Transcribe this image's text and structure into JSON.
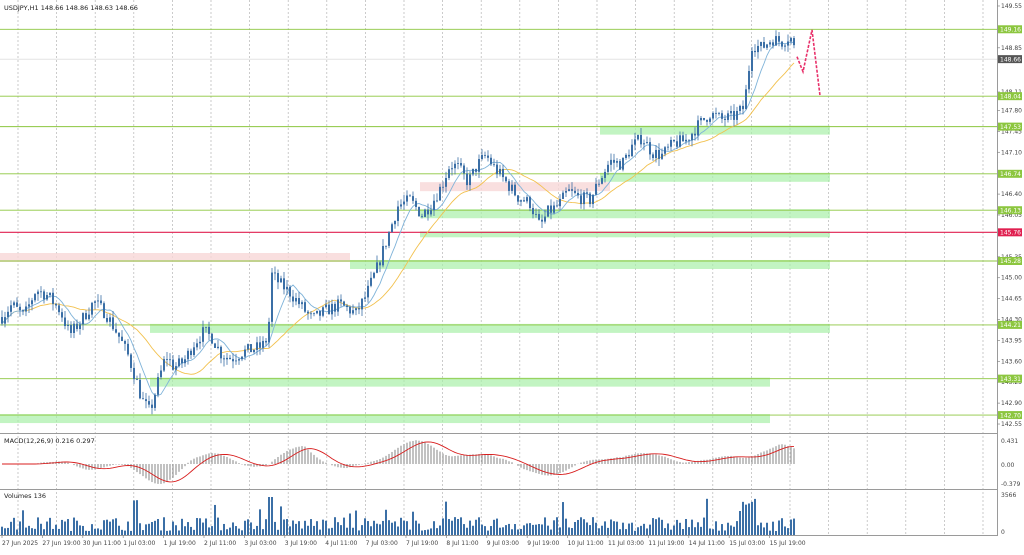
{
  "header": {
    "title": "USDJPY,H1 148.66 148.86 148.63 148.66"
  },
  "colors": {
    "candle": "#3b6fa6",
    "fast_ma": "#7fb3d9",
    "slow_ma": "#f2c14e",
    "level_line": "#8cc63f",
    "zone_green": "#a8f0a8",
    "zone_red": "#f8d7d7",
    "resistance_red": "#e02050",
    "forecast": "#e8306a",
    "macd_hist": "#9a9a9a",
    "macd_signal": "#d81e1e",
    "volume": "#3b6fa6",
    "current_price_bg": "#555555"
  },
  "price_axis": {
    "min": 142.45,
    "max": 149.6,
    "ticks": [
      "149.55",
      "148.85",
      "148.11",
      "147.80",
      "147.45",
      "147.10",
      "146.40",
      "146.05",
      "145.35",
      "145.00",
      "144.65",
      "144.30",
      "143.95",
      "143.60",
      "143.25",
      "142.90",
      "142.55"
    ]
  },
  "current_price": {
    "value": 148.66,
    "label": "148.66"
  },
  "levels": [
    {
      "value": 149.16,
      "label": "149.16",
      "kind": "green"
    },
    {
      "value": 148.04,
      "label": "148.04",
      "kind": "green"
    },
    {
      "value": 147.53,
      "label": "147.53",
      "kind": "green"
    },
    {
      "value": 146.74,
      "label": "146.74",
      "kind": "green"
    },
    {
      "value": 146.13,
      "label": "146.13",
      "kind": "green"
    },
    {
      "value": 145.76,
      "label": "145.76",
      "kind": "red"
    },
    {
      "value": 145.28,
      "label": "145.28",
      "kind": "green"
    },
    {
      "value": 144.21,
      "label": "144.21",
      "kind": "green"
    },
    {
      "value": 143.31,
      "label": "143.31",
      "kind": "green"
    },
    {
      "value": 142.7,
      "label": "142.70",
      "kind": "green"
    }
  ],
  "macd": {
    "title": "MACD(12,26,9) 0.216 0.297",
    "ticks": [
      "0.431",
      "0.00",
      "-0.379"
    ]
  },
  "volumes": {
    "title": "Volumes 136",
    "ticks": [
      "3566",
      "0"
    ]
  },
  "time_axis": {
    "labels": [
      "27 Jun 2025",
      "27 Jun 19:00",
      "30 Jun 11:00",
      "1 Jul 03:00",
      "1 Jul 19:00",
      "2 Jul 11:00",
      "3 Jul 03:00",
      "3 Jul 19:00",
      "4 Jul 11:00",
      "7 Jul 03:00",
      "7 Jul 19:00",
      "8 Jul 11:00",
      "9 Jul 03:00",
      "9 Jul 19:00",
      "10 Jul 11:00",
      "11 Jul 03:00",
      "11 Jul 19:00",
      "14 Jul 11:00",
      "15 Jul 03:00",
      "15 Jul 19:00"
    ]
  },
  "chart_data": {
    "type": "candlestick",
    "symbol": "USDJPY",
    "timeframe": "H1",
    "ohlc_last": {
      "open": 148.66,
      "high": 148.86,
      "low": 148.63,
      "close": 148.66
    },
    "price_path": [
      [
        0,
        144.3
      ],
      [
        12,
        144.55
      ],
      [
        24,
        144.35
      ],
      [
        36,
        144.8
      ],
      [
        48,
        144.7
      ],
      [
        60,
        144.45
      ],
      [
        70,
        144.05
      ],
      [
        82,
        144.3
      ],
      [
        94,
        144.6
      ],
      [
        106,
        144.4
      ],
      [
        118,
        144.05
      ],
      [
        128,
        143.7
      ],
      [
        136,
        143.3
      ],
      [
        142,
        142.95
      ],
      [
        150,
        142.75
      ],
      [
        158,
        143.25
      ],
      [
        166,
        143.7
      ],
      [
        174,
        143.5
      ],
      [
        184,
        143.6
      ],
      [
        194,
        143.9
      ],
      [
        204,
        144.1
      ],
      [
        212,
        144.0
      ],
      [
        222,
        143.7
      ],
      [
        232,
        143.65
      ],
      [
        242,
        143.75
      ],
      [
        252,
        143.8
      ],
      [
        262,
        143.85
      ],
      [
        268,
        144.0
      ],
      [
        272,
        145.05
      ],
      [
        280,
        144.9
      ],
      [
        290,
        144.75
      ],
      [
        300,
        144.55
      ],
      [
        312,
        144.3
      ],
      [
        326,
        144.45
      ],
      [
        340,
        144.55
      ],
      [
        356,
        144.4
      ],
      [
        366,
        144.7
      ],
      [
        378,
        145.2
      ],
      [
        388,
        145.7
      ],
      [
        398,
        146.2
      ],
      [
        410,
        146.3
      ],
      [
        422,
        146.05
      ],
      [
        432,
        146.25
      ],
      [
        442,
        146.55
      ],
      [
        450,
        146.9
      ],
      [
        458,
        146.85
      ],
      [
        468,
        146.6
      ],
      [
        478,
        146.9
      ],
      [
        486,
        147.05
      ],
      [
        494,
        146.85
      ],
      [
        506,
        146.6
      ],
      [
        518,
        146.35
      ],
      [
        530,
        146.25
      ],
      [
        540,
        145.85
      ],
      [
        548,
        146.1
      ],
      [
        558,
        146.2
      ],
      [
        568,
        146.45
      ],
      [
        578,
        146.35
      ],
      [
        590,
        146.3
      ],
      [
        600,
        146.65
      ],
      [
        610,
        146.95
      ],
      [
        622,
        146.9
      ],
      [
        632,
        147.2
      ],
      [
        642,
        147.35
      ],
      [
        652,
        147.1
      ],
      [
        662,
        147.05
      ],
      [
        674,
        147.25
      ],
      [
        686,
        147.3
      ],
      [
        698,
        147.55
      ],
      [
        710,
        147.75
      ],
      [
        722,
        147.65
      ],
      [
        734,
        147.7
      ],
      [
        744,
        147.85
      ],
      [
        752,
        148.9
      ],
      [
        762,
        148.85
      ],
      [
        772,
        149.0
      ],
      [
        782,
        148.95
      ],
      [
        790,
        149.05
      ],
      [
        797,
        148.7
      ]
    ],
    "forecast_path": [
      [
        797,
        148.7
      ],
      [
        803,
        148.45
      ],
      [
        812,
        149.15
      ],
      [
        820,
        148.05
      ]
    ],
    "ylim": [
      142.45,
      149.6
    ]
  }
}
